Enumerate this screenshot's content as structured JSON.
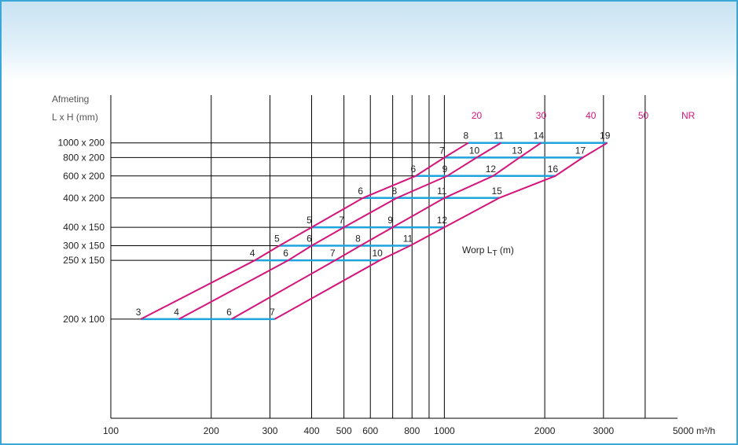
{
  "chart_data": {
    "type": "line",
    "title": "",
    "y_header": [
      "Afmeting",
      "L x H (mm)"
    ],
    "xlabel": "m³/h",
    "x_scale": "log",
    "xlim": [
      100,
      5000
    ],
    "x_ticks": [
      {
        "v": 100,
        "t": "100"
      },
      {
        "v": 200,
        "t": "200"
      },
      {
        "v": 300,
        "t": "300"
      },
      {
        "v": 400,
        "t": "400"
      },
      {
        "v": 500,
        "t": "500"
      },
      {
        "v": 600,
        "t": "600"
      },
      {
        "v": 800,
        "t": "800"
      },
      {
        "v": 1000,
        "t": "1000"
      },
      {
        "v": 2000,
        "t": "2000"
      },
      {
        "v": 3000,
        "t": "3000"
      },
      {
        "v": 5000,
        "t": "5000 m³/h"
      }
    ],
    "x_gridlines": [
      200,
      300,
      400,
      500,
      600,
      700,
      800,
      900,
      1000,
      2000,
      3000,
      4000
    ],
    "nr_label": "NR",
    "nr_ticks": [
      {
        "v": 1250,
        "t": "20"
      },
      {
        "v": 1950,
        "t": "30"
      },
      {
        "v": 2750,
        "t": "40"
      },
      {
        "v": 3950,
        "t": "50"
      }
    ],
    "sizes": [
      {
        "label": "1000 x 200",
        "level": 9.5,
        "xmin": 1180,
        "xmax": 3080,
        "points": [
          {
            "x": 1180,
            "t": "8"
          },
          {
            "x": 1480,
            "t": "11"
          },
          {
            "x": 1950,
            "t": "14"
          },
          {
            "x": 3080,
            "t": "19"
          }
        ]
      },
      {
        "label": "800 x 200",
        "level": 9.1,
        "xmin": 1000,
        "xmax": 2600,
        "points": [
          {
            "x": 1000,
            "t": "7"
          },
          {
            "x": 1250,
            "t": "10"
          },
          {
            "x": 1680,
            "t": "13"
          },
          {
            "x": 2600,
            "t": "17"
          }
        ]
      },
      {
        "label": "600 x 200",
        "level": 8.6,
        "xmin": 820,
        "xmax": 2150,
        "points": [
          {
            "x": 820,
            "t": "6"
          },
          {
            "x": 1020,
            "t": "9"
          },
          {
            "x": 1400,
            "t": "12"
          },
          {
            "x": 2150,
            "t": "16"
          }
        ]
      },
      {
        "label": "400 x 200",
        "level": 8.0,
        "xmin": 570,
        "xmax": 1460,
        "points": [
          {
            "x": 570,
            "t": "6"
          },
          {
            "x": 720,
            "t": "8"
          },
          {
            "x": 1000,
            "t": "11"
          },
          {
            "x": 1460,
            "t": "15"
          }
        ]
      },
      {
        "label": "400 x 150",
        "level": 7.2,
        "xmin": 400,
        "xmax": 1000,
        "points": [
          {
            "x": 400,
            "t": "5"
          },
          {
            "x": 500,
            "t": "7"
          },
          {
            "x": 700,
            "t": "9"
          },
          {
            "x": 1000,
            "t": "12"
          }
        ]
      },
      {
        "label": "300 x 150",
        "level": 6.7,
        "xmin": 320,
        "xmax": 790,
        "points": [
          {
            "x": 320,
            "t": "5"
          },
          {
            "x": 400,
            "t": "6"
          },
          {
            "x": 560,
            "t": "8"
          },
          {
            "x": 790,
            "t": "11"
          }
        ]
      },
      {
        "label": "250 x 150",
        "level": 6.3,
        "xmin": 270,
        "xmax": 640,
        "points": [
          {
            "x": 270,
            "t": "4"
          },
          {
            "x": 340,
            "t": "6"
          },
          {
            "x": 470,
            "t": "7"
          },
          {
            "x": 640,
            "t": "10"
          }
        ]
      },
      {
        "label": "200 x 100",
        "level": 4.7,
        "xmin": 123,
        "xmax": 310,
        "points": [
          {
            "x": 123,
            "t": "3"
          },
          {
            "x": 160,
            "t": "4"
          },
          {
            "x": 230,
            "t": "6"
          },
          {
            "x": 310,
            "t": "7"
          }
        ]
      }
    ],
    "worp_label_main": "Worp L",
    "worp_label_sub": "T",
    "worp_label_unit": " (m)",
    "colors": {
      "size_lines": "#1ea3dc",
      "throw_lines": "#d4157b",
      "grid": "#000000"
    }
  }
}
